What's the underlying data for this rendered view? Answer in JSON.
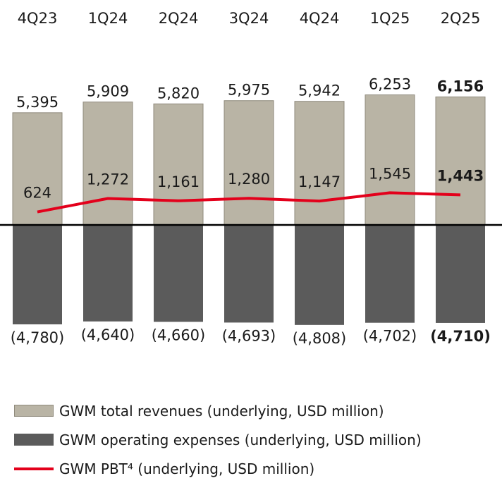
{
  "chart_data": {
    "type": "bar",
    "categories": [
      "4Q23",
      "1Q24",
      "2Q24",
      "3Q24",
      "4Q24",
      "1Q25",
      "2Q25"
    ],
    "series": [
      {
        "name": "GWM total revenues (underlying, USD million)",
        "type": "bar",
        "values": [
          5395,
          5909,
          5820,
          5975,
          5942,
          6253,
          6156
        ],
        "labels": [
          "5,395",
          "5,909",
          "5,820",
          "5,975",
          "5,942",
          "6,253",
          "6,156"
        ]
      },
      {
        "name": "GWM operating expenses (underlying, USD million)",
        "type": "bar",
        "values": [
          -4780,
          -4640,
          -4660,
          -4693,
          -4808,
          -4702,
          -4710
        ],
        "labels": [
          "(4,780)",
          "(4,640)",
          "(4,660)",
          "(4,693)",
          "(4,808)",
          "(4,702)",
          "(4,710)"
        ]
      },
      {
        "name": "GWM PBT⁴ (underlying, USD million)",
        "type": "line",
        "values": [
          624,
          1272,
          1161,
          1280,
          1147,
          1545,
          1443
        ],
        "labels": [
          "624",
          "1,272",
          "1,161",
          "1,280",
          "1,147",
          "1,545",
          "1,443"
        ]
      }
    ],
    "highlight_index": 6,
    "colors": {
      "revenues": "#b9b4a5",
      "expenses": "#5b5b5b",
      "pbt": "#e3001b",
      "axis": "#000000"
    },
    "legend_position": "bottom",
    "grid": false
  }
}
